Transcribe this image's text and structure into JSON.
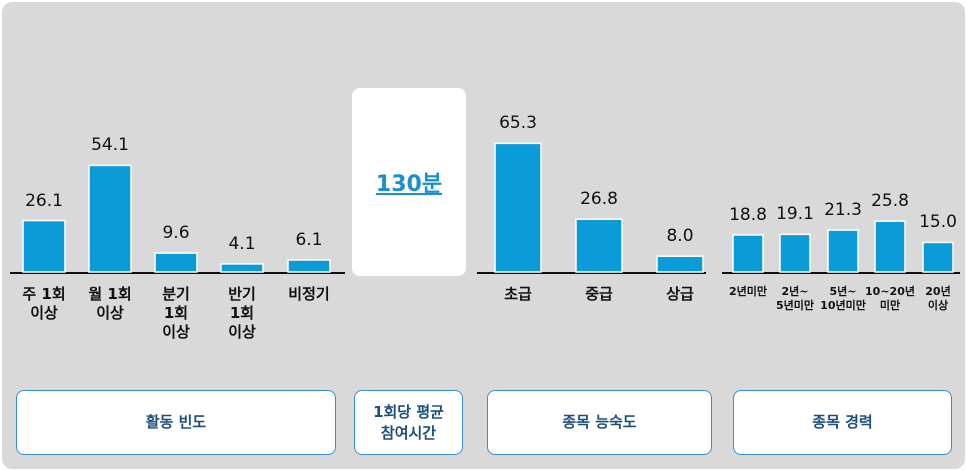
{
  "chart_data": [
    {
      "type": "bar",
      "title": "활동 빈도",
      "color": "#0a9bd8",
      "categories": [
        "주 1회\n이상",
        "월 1회\n이상",
        "분기\n1회\n이상",
        "반기\n1회\n이상",
        "비정기"
      ],
      "values": [
        26.1,
        54.1,
        9.6,
        4.1,
        6.1
      ]
    },
    {
      "type": "bar",
      "title": "종목 능숙도",
      "color": "#0a9bd8",
      "categories": [
        "초급",
        "중급",
        "상급"
      ],
      "values": [
        65.3,
        26.8,
        8.0
      ],
      "value_labels": [
        "65.3",
        "26.8",
        "8.0"
      ]
    },
    {
      "type": "bar",
      "title": "종목 경력",
      "color": "#0a9bd8",
      "categories": [
        "2년미만",
        "2년~\n5년미만",
        "5년~\n10년미만",
        "10~20년\n미만",
        "20년이상"
      ],
      "values": [
        18.8,
        19.1,
        21.3,
        25.8,
        15.0
      ],
      "value_labels": [
        "18.8",
        "19.1",
        "21.3",
        "25.8",
        "15.0"
      ]
    }
  ],
  "avg_time": {
    "value": "130분",
    "label": "1회당 평균\n참여시간"
  }
}
